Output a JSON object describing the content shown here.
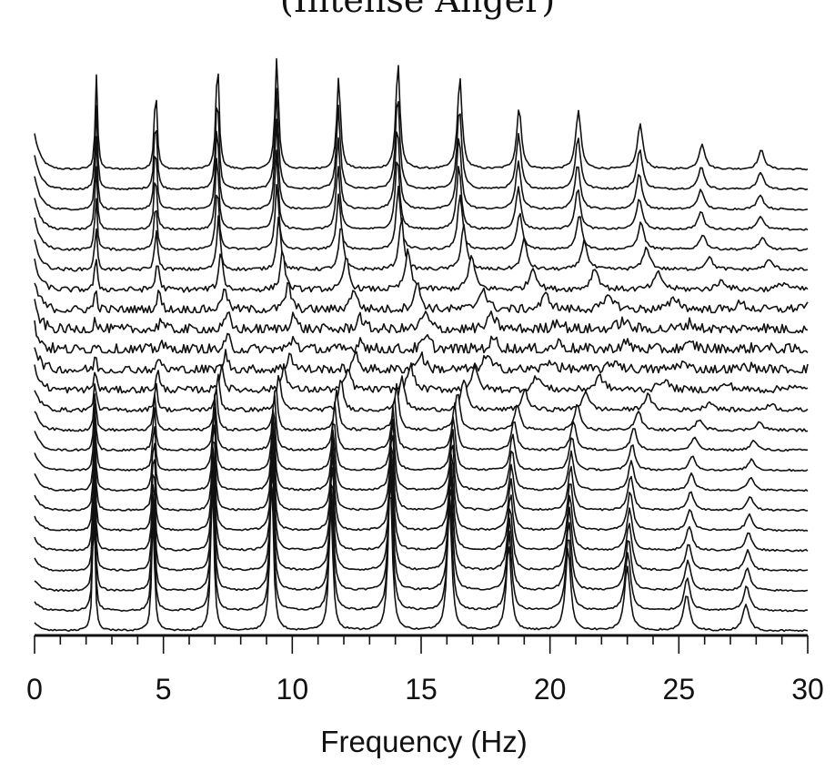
{
  "title": "(Intense Anger)",
  "chart_data": {
    "type": "line",
    "title": "(Intense Anger)",
    "xlabel": "Frequency (Hz)",
    "ylabel": "",
    "xlim": [
      0,
      30
    ],
    "x_ticks": [
      "0",
      "5",
      "10",
      "15",
      "20",
      "25",
      "30"
    ],
    "grid": false,
    "legend": "none",
    "stack_count": 24,
    "peak_frequencies_top_trace": [
      2.4,
      4.7,
      7.1,
      9.4,
      11.8,
      14.1,
      16.5,
      18.8,
      21.1,
      23.5,
      25.9,
      28.2
    ],
    "peak_frequencies_bottom_trace": [
      2.3,
      4.6,
      6.9,
      9.2,
      11.5,
      13.8,
      16.1,
      18.4,
      20.7,
      23.0,
      25.3,
      27.6
    ],
    "peak_amplitudes_top_trace": [
      1.0,
      0.9,
      1.18,
      1.2,
      0.98,
      1.13,
      0.98,
      0.65,
      0.62,
      0.48,
      0.27,
      0.2
    ],
    "line_color": "#111111"
  }
}
